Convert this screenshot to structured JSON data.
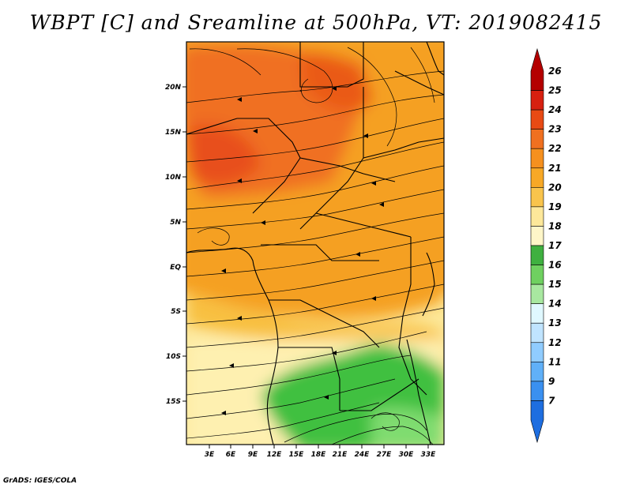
{
  "title": "WBPT [C] and Sreamline at 500hPa, VT: 2019082415",
  "credit": "GrADS: IGES/COLA",
  "map": {
    "lat_labels": [
      "20N",
      "15N",
      "10N",
      "5N",
      "EQ",
      "5S",
      "10S",
      "15S"
    ],
    "lon_labels": [
      "3E",
      "6E",
      "9E",
      "12E",
      "15E",
      "18E",
      "21E",
      "24E",
      "27E",
      "30E",
      "33E"
    ],
    "field_colors": {
      "hot_orange": "#f07020",
      "orange": "#f5a020",
      "light_orange": "#f8c040",
      "pale_yellow": "#fde89a",
      "cream": "#fef6c8",
      "green": "#3fc040",
      "light_green": "#7fdc70"
    }
  },
  "colorbar": {
    "labels": [
      "26",
      "25",
      "24",
      "23",
      "22",
      "21",
      "20",
      "19",
      "18",
      "17",
      "16",
      "15",
      "14",
      "13",
      "12",
      "11",
      "9",
      "7"
    ],
    "colors": [
      "#b40000",
      "#d72010",
      "#e84a14",
      "#f07020",
      "#f5901e",
      "#f7a826",
      "#f9c44c",
      "#fde89a",
      "#fef6c8",
      "#3fb040",
      "#6fd060",
      "#a8e8a0",
      "#e0f8ff",
      "#c0e4ff",
      "#90ccff",
      "#60b0f8",
      "#3a90f0",
      "#1e6ee0"
    ]
  }
}
